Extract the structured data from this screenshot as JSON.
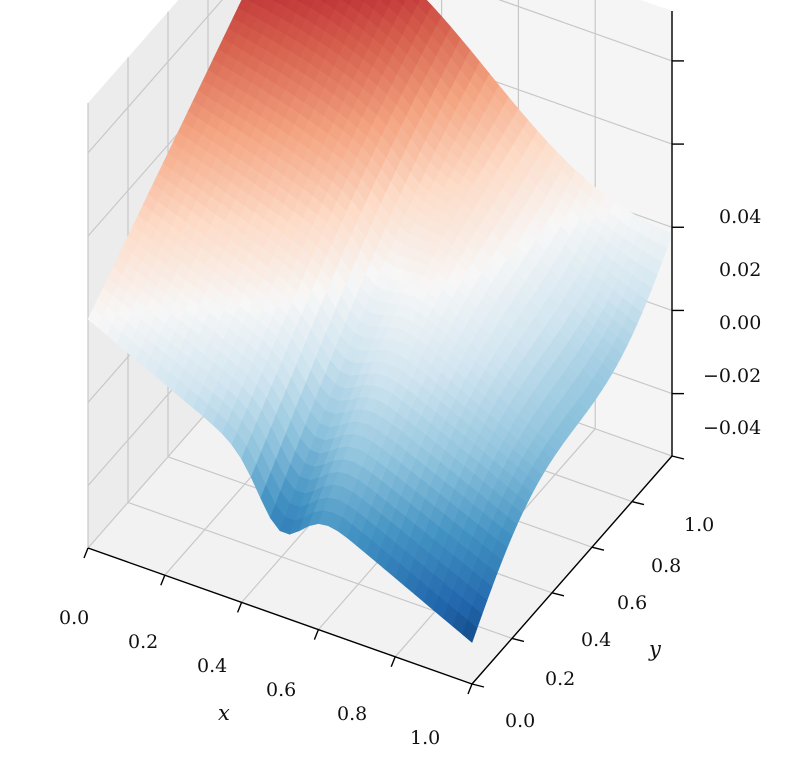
{
  "chart_data": {
    "type": "surface3d",
    "colormap": "RdBu_r",
    "grid": true,
    "xlabel": "x",
    "ylabel": "y",
    "zlabel": "",
    "xlim": [
      0,
      1
    ],
    "ylim": [
      0,
      1
    ],
    "zlim": [
      -0.055,
      0.052
    ],
    "xticks": [
      "0.0",
      "0.2",
      "0.4",
      "0.6",
      "0.8",
      "1.0"
    ],
    "yticks": [
      "0.0",
      "0.2",
      "0.4",
      "0.6",
      "0.8",
      "1.0"
    ],
    "zticks": [
      "−0.04",
      "−0.02",
      "0.00",
      "0.02",
      "0.04"
    ],
    "surface": {
      "description_of_shape": "ridge-like surface: high values near x=0,y=1 decreasing toward x=1,y=0",
      "x": [
        0.0,
        0.1,
        0.2,
        0.3,
        0.4,
        0.5,
        0.6,
        0.7,
        0.8,
        0.9,
        1.0
      ],
      "y": [
        0.0,
        0.1,
        0.2,
        0.3,
        0.4,
        0.5,
        0.6,
        0.7,
        0.8,
        0.9,
        1.0
      ],
      "z_range": [
        -0.055,
        0.052
      ]
    }
  }
}
